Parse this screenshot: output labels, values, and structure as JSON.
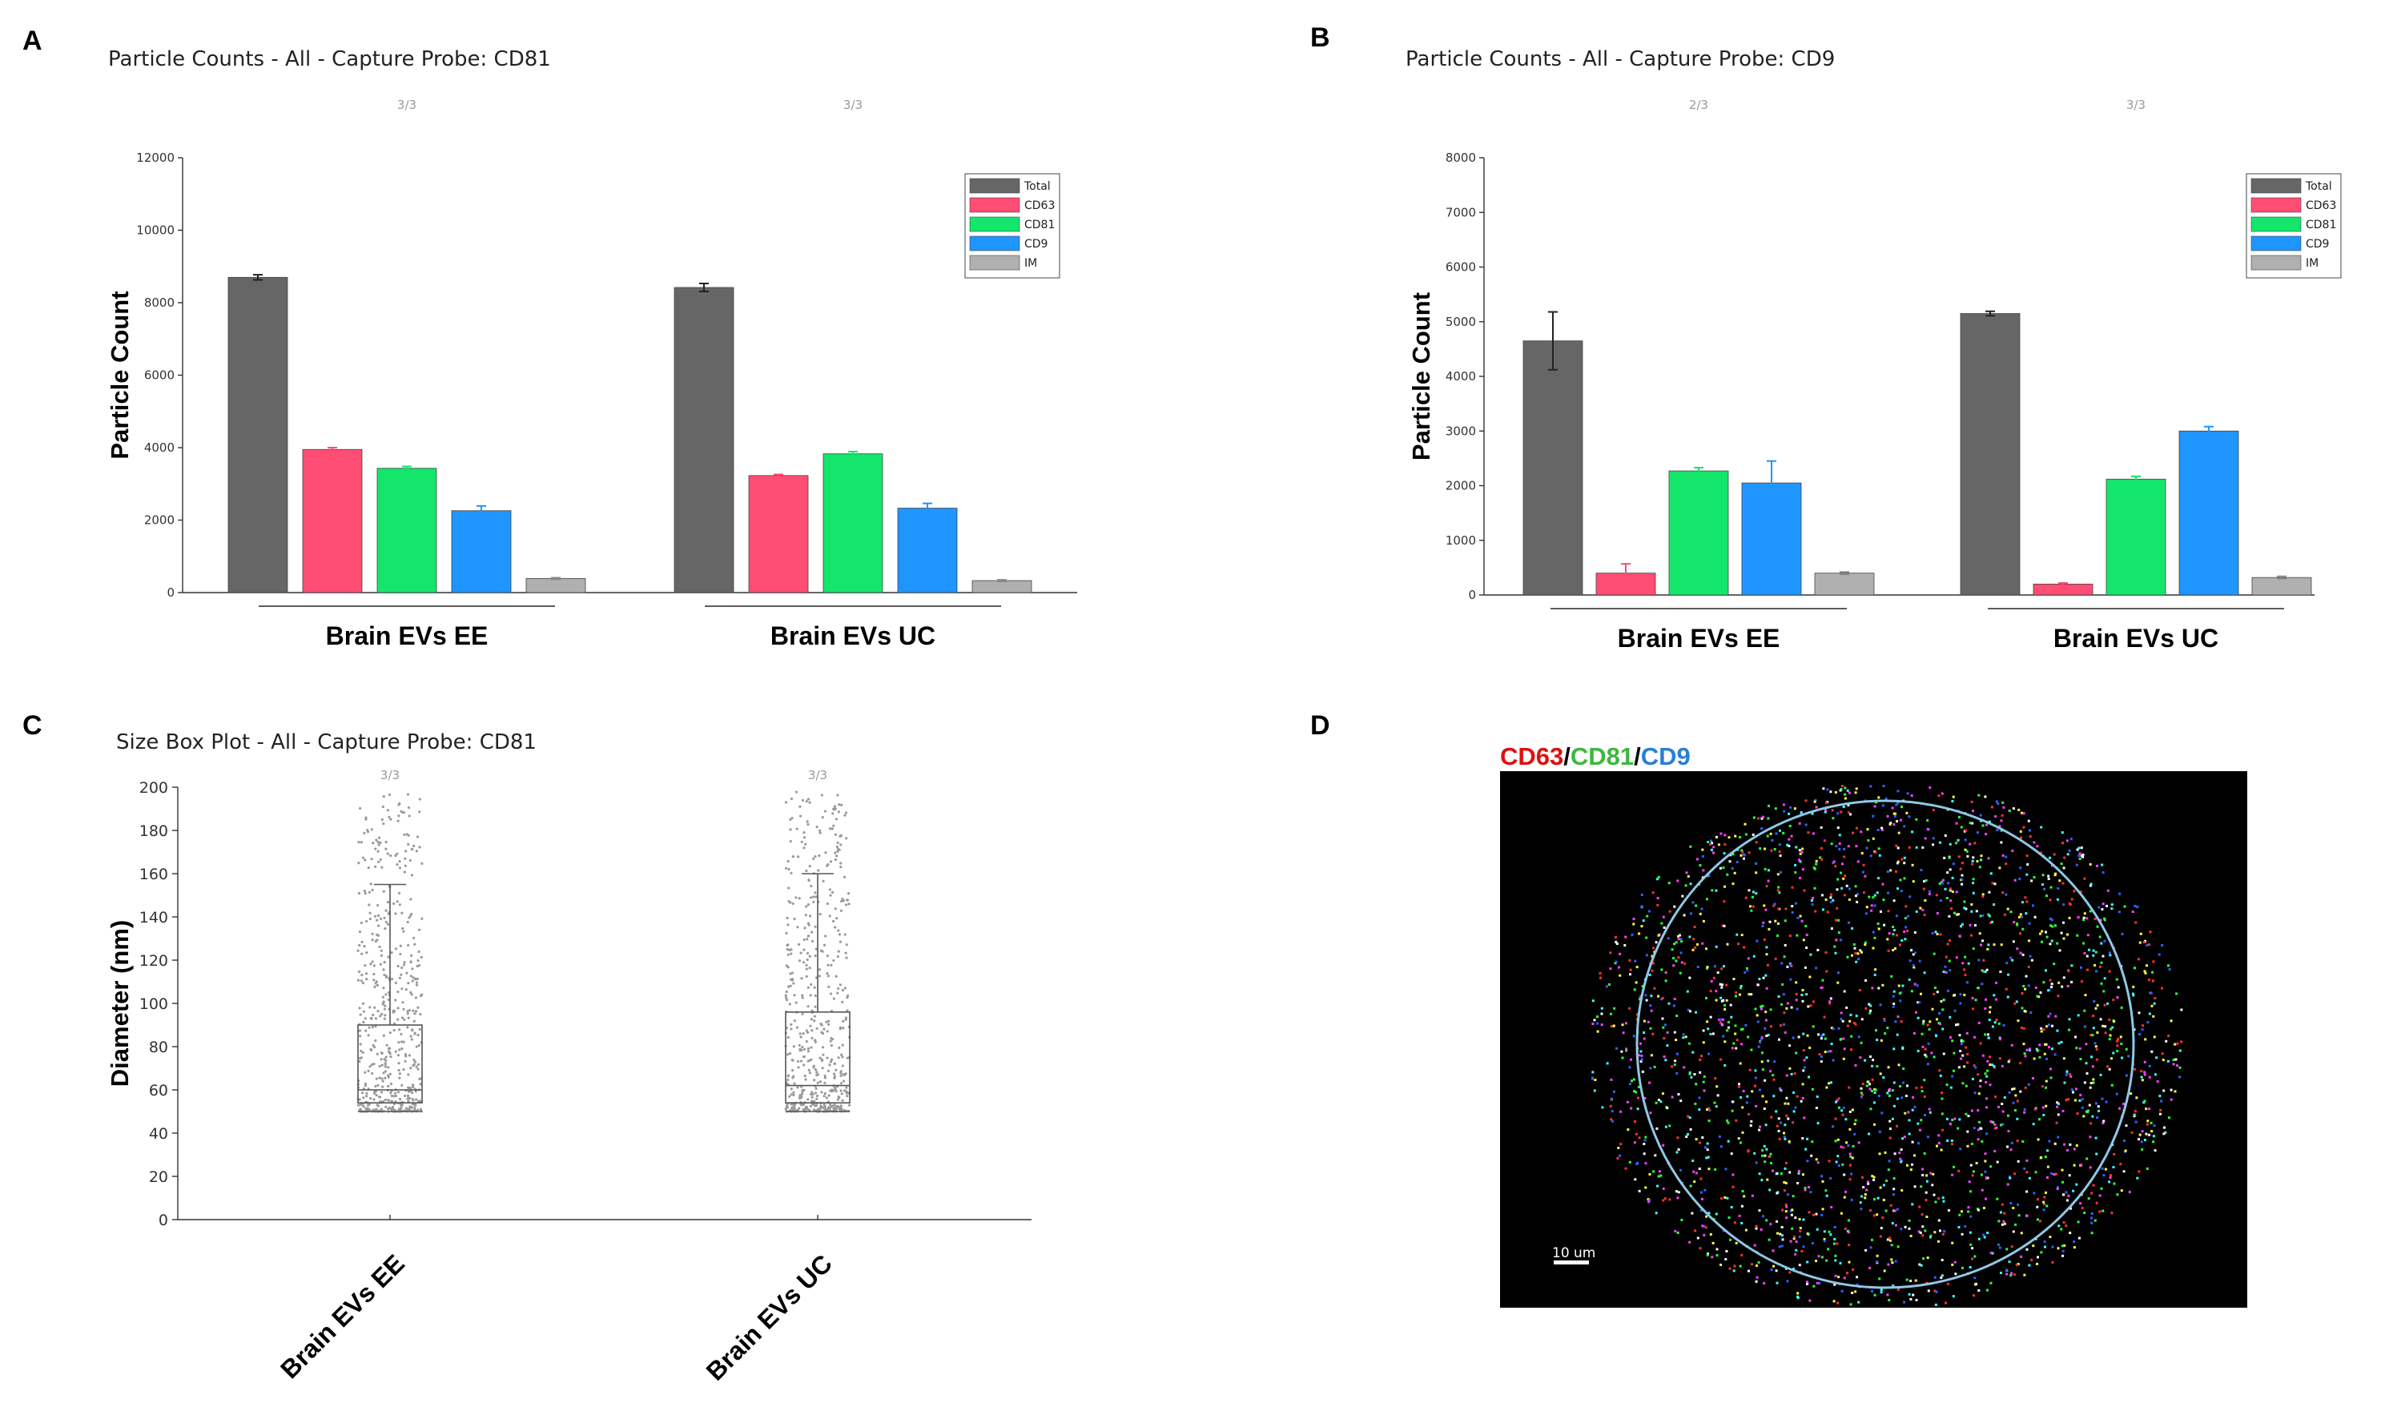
{
  "panels": [
    {
      "letter": "A"
    },
    {
      "letter": "B"
    },
    {
      "letter": "C"
    },
    {
      "letter": "D"
    }
  ],
  "chart_data": [
    {
      "type": "bar",
      "panel": "A",
      "title": "Particle Counts - All - Capture Probe: CD81",
      "ylabel": "Particle Count",
      "ylim": [
        0,
        12000
      ],
      "yticks": [
        0,
        2000,
        4000,
        6000,
        8000,
        10000,
        12000
      ],
      "categories": [
        "Brain EVs EE",
        "Brain EVs UC"
      ],
      "replicate_labels": [
        "3/3",
        "3/3"
      ],
      "series": [
        {
          "name": "Total",
          "color": "#666666",
          "values": [
            8700,
            8420
          ],
          "errors": [
            70,
            110
          ]
        },
        {
          "name": "CD63",
          "color": "#ff4d73",
          "values": [
            3950,
            3230
          ],
          "errors": [
            50,
            30
          ]
        },
        {
          "name": "CD81",
          "color": "#13e66b",
          "values": [
            3430,
            3830
          ],
          "errors": [
            50,
            60
          ]
        },
        {
          "name": "CD9",
          "color": "#1f95ff",
          "values": [
            2260,
            2330
          ],
          "errors": [
            130,
            130
          ]
        },
        {
          "name": "IM",
          "color": "#b0b0b0",
          "values": [
            390,
            330
          ],
          "errors": [
            20,
            20
          ]
        }
      ]
    },
    {
      "type": "bar",
      "panel": "B",
      "title": "Particle Counts - All - Capture Probe: CD9",
      "ylabel": "Particle Count",
      "ylim": [
        0,
        8000
      ],
      "yticks": [
        0,
        1000,
        2000,
        3000,
        4000,
        5000,
        6000,
        7000,
        8000
      ],
      "categories": [
        "Brain EVs EE",
        "Brain EVs UC"
      ],
      "replicate_labels": [
        "2/3",
        "3/3"
      ],
      "series": [
        {
          "name": "Total",
          "color": "#666666",
          "values": [
            4650,
            5150
          ],
          "errors": [
            530,
            40
          ]
        },
        {
          "name": "CD63",
          "color": "#ff4d73",
          "values": [
            400,
            200
          ],
          "errors": [
            170,
            20
          ]
        },
        {
          "name": "CD81",
          "color": "#13e66b",
          "values": [
            2270,
            2120
          ],
          "errors": [
            60,
            50
          ]
        },
        {
          "name": "CD9",
          "color": "#1f95ff",
          "values": [
            2050,
            3000
          ],
          "errors": [
            400,
            80
          ]
        },
        {
          "name": "IM",
          "color": "#b0b0b0",
          "values": [
            400,
            320
          ],
          "errors": [
            20,
            20
          ]
        }
      ]
    },
    {
      "type": "box",
      "panel": "C",
      "title": "Size Box Plot - All - Capture Probe: CD81",
      "ylabel": "Diameter (nm)",
      "ylim": [
        0,
        200
      ],
      "yticks": [
        0,
        20,
        40,
        60,
        80,
        100,
        120,
        140,
        160,
        180,
        200
      ],
      "categories": [
        "Brain EVs EE",
        "Brain EVs UC"
      ],
      "replicate_labels": [
        "3/3",
        "3/3"
      ],
      "boxes": [
        {
          "name": "Brain EVs EE",
          "min": 50,
          "q1": 54,
          "median": 60,
          "q3": 90,
          "whisker_high": 155
        },
        {
          "name": "Brain EVs UC",
          "min": 50,
          "q1": 54,
          "median": 62,
          "q3": 96,
          "whisker_high": 160
        }
      ]
    }
  ],
  "micrograph": {
    "panel": "D",
    "legend": [
      {
        "text": "CD63",
        "color": "#e01010"
      },
      {
        "text": "/",
        "color": "#000000"
      },
      {
        "text": "CD81",
        "color": "#3db83d"
      },
      {
        "text": "/",
        "color": "#000000"
      },
      {
        "text": "CD9",
        "color": "#2a7fd4"
      }
    ],
    "scale_bar": "10 um",
    "background": "#000000",
    "ring_color": "#8fc8e6",
    "spot_colors": [
      "#ff3030",
      "#30ff40",
      "#3060ff",
      "#ffffff",
      "#ff40ff",
      "#ffff40",
      "#40ffff"
    ]
  }
}
